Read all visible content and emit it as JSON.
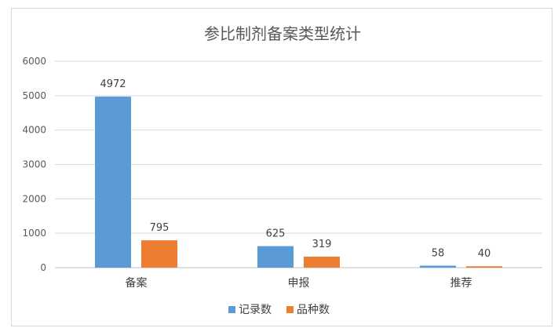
{
  "chart_data": {
    "type": "bar",
    "title": "参比制剂备案类型统计",
    "categories": [
      "备案",
      "申报",
      "推荐"
    ],
    "series": [
      {
        "name": "记录数",
        "values": [
          4972,
          625,
          58
        ],
        "color": "#5b9bd5"
      },
      {
        "name": "品种数",
        "values": [
          795,
          319,
          40
        ],
        "color": "#ed7d31"
      }
    ],
    "ylim": [
      0,
      6000
    ],
    "yticks": [
      "0",
      "1000",
      "2000",
      "3000",
      "4000",
      "5000",
      "6000"
    ],
    "grid": true,
    "legend_position": "bottom"
  }
}
